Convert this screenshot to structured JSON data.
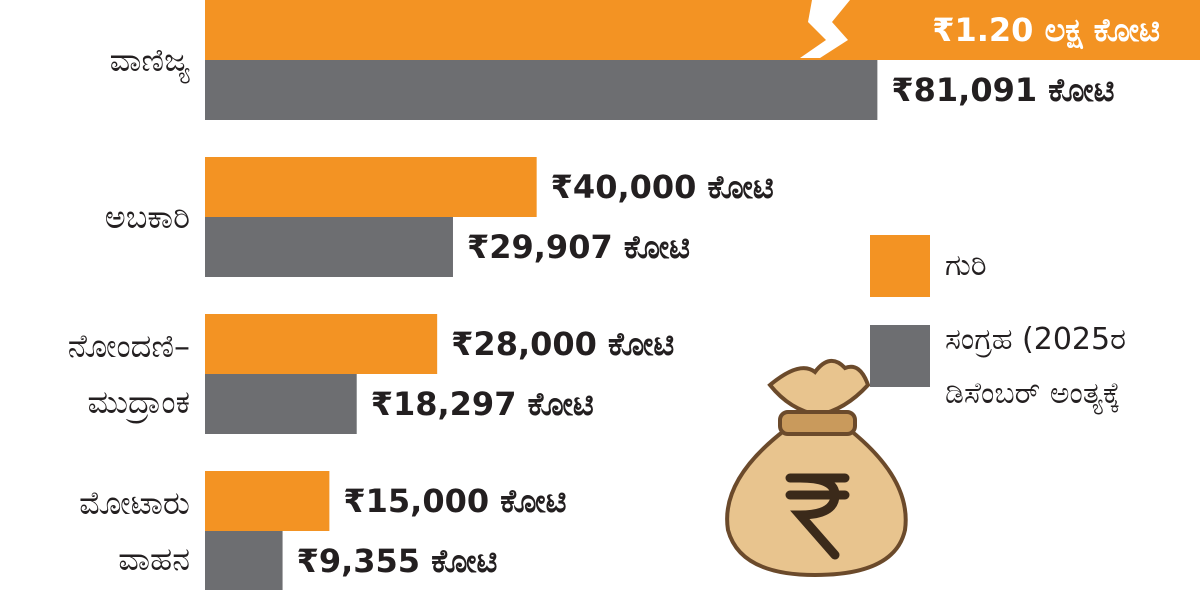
{
  "chart_data": {
    "type": "bar",
    "orientation": "horizontal",
    "categories": [
      "ವಾಣಿಜ್ಯ",
      "ಅಬಕಾರಿ",
      "ನೋಂದಣಿ–ಮುದ್ರಾಂಕ",
      "ಮೋಟಾರು ವಾಹನ"
    ],
    "series": [
      {
        "name": "ಗುರಿ",
        "color": "#f39323",
        "values": [
          120000,
          40000,
          28000,
          15000
        ],
        "value_labels": [
          "₹1.20 ಲಕ್ಷ ಕೋಟಿ",
          "₹40,000 ಕೋಟಿ",
          "₹28,000 ಕೋಟಿ",
          "₹15,000 ಕೋಟಿ"
        ]
      },
      {
        "name": "ಸಂಗ್ರಹ (2025ರ ಡಿಸೆಂಬರ್ ಅಂತ್ಯಕ್ಕೆ",
        "color": "#6d6e71",
        "values": [
          81091,
          29907,
          18297,
          9355
        ],
        "value_labels": [
          "₹81,091 ಕೋಟಿ",
          "₹29,907 ಕೋಟಿ",
          "₹18,297 ಕೋಟಿ",
          "₹9,355 ಕೋಟಿ"
        ]
      }
    ],
    "legend": "right"
  }
}
